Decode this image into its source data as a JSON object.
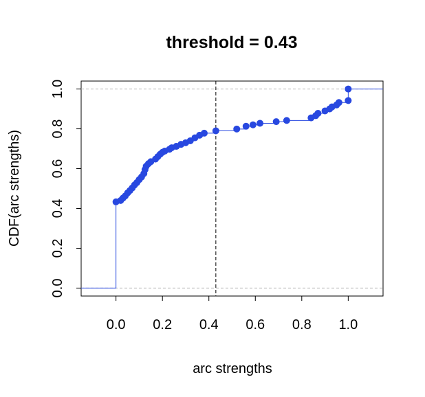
{
  "chart_data": {
    "type": "scatter",
    "title": "threshold =  0.43",
    "xlabel": "arc strengths",
    "ylabel": "CDF(arc strengths)",
    "xlim": [
      -0.15,
      1.15
    ],
    "ylim": [
      -0.04,
      1.04
    ],
    "x_ticks": [
      "0.0",
      "0.2",
      "0.4",
      "0.6",
      "0.8",
      "1.0"
    ],
    "y_ticks": [
      "0.0",
      "0.2",
      "0.4",
      "0.6",
      "0.8",
      "1.0"
    ],
    "threshold": 0.43,
    "grid": false,
    "legend": "none",
    "colors": {
      "points": "#2848e0",
      "step_line": "#2848e0",
      "guide": "#b4b4b4",
      "threshold_line": "#000000"
    },
    "points": [
      [
        0.0,
        0.433
      ],
      [
        0.02,
        0.44
      ],
      [
        0.03,
        0.452
      ],
      [
        0.04,
        0.463
      ],
      [
        0.05,
        0.478
      ],
      [
        0.06,
        0.49
      ],
      [
        0.07,
        0.503
      ],
      [
        0.08,
        0.518
      ],
      [
        0.09,
        0.53
      ],
      [
        0.1,
        0.545
      ],
      [
        0.11,
        0.558
      ],
      [
        0.12,
        0.575
      ],
      [
        0.125,
        0.595
      ],
      [
        0.13,
        0.612
      ],
      [
        0.14,
        0.625
      ],
      [
        0.15,
        0.635
      ],
      [
        0.17,
        0.648
      ],
      [
        0.18,
        0.66
      ],
      [
        0.19,
        0.672
      ],
      [
        0.2,
        0.682
      ],
      [
        0.21,
        0.688
      ],
      [
        0.23,
        0.697
      ],
      [
        0.24,
        0.705
      ],
      [
        0.26,
        0.712
      ],
      [
        0.28,
        0.722
      ],
      [
        0.3,
        0.73
      ],
      [
        0.32,
        0.74
      ],
      [
        0.34,
        0.755
      ],
      [
        0.36,
        0.768
      ],
      [
        0.38,
        0.778
      ],
      [
        0.43,
        0.79
      ],
      [
        0.52,
        0.799
      ],
      [
        0.56,
        0.813
      ],
      [
        0.59,
        0.82
      ],
      [
        0.62,
        0.828
      ],
      [
        0.69,
        0.836
      ],
      [
        0.735,
        0.842
      ],
      [
        0.84,
        0.855
      ],
      [
        0.86,
        0.866
      ],
      [
        0.87,
        0.878
      ],
      [
        0.9,
        0.89
      ],
      [
        0.92,
        0.9
      ],
      [
        0.93,
        0.91
      ],
      [
        0.95,
        0.92
      ],
      [
        0.96,
        0.932
      ],
      [
        1.0,
        0.942
      ],
      [
        1.0,
        1.0
      ]
    ]
  }
}
